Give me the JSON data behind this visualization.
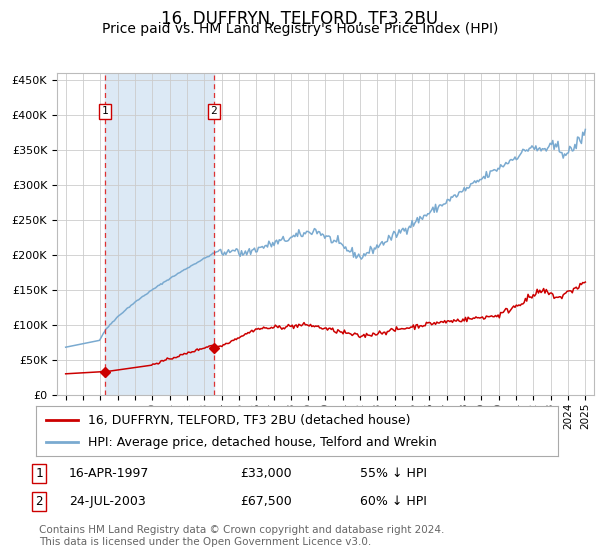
{
  "title": "16, DUFFRYN, TELFORD, TF3 2BU",
  "subtitle": "Price paid vs. HM Land Registry's House Price Index (HPI)",
  "title_fontsize": 12,
  "subtitle_fontsize": 10,
  "background_color": "#ffffff",
  "plot_bg_color": "#ffffff",
  "grid_color": "#cccccc",
  "shaded_region": [
    1997.29,
    2003.56
  ],
  "shaded_color": "#dce9f5",
  "vline1_x": 1997.29,
  "vline2_x": 2003.56,
  "vline_color": "#dd3333",
  "marker1_x": 1997.29,
  "marker1_y": 33000,
  "marker2_x": 2003.56,
  "marker2_y": 67500,
  "marker_color": "#cc0000",
  "annotation_color": "#cc0000",
  "ylim": [
    0,
    460000
  ],
  "xlim": [
    1994.5,
    2025.5
  ],
  "ytick_vals": [
    0,
    50000,
    100000,
    150000,
    200000,
    250000,
    300000,
    350000,
    400000,
    450000
  ],
  "ytick_labels": [
    "£0",
    "£50K",
    "£100K",
    "£150K",
    "£200K",
    "£250K",
    "£300K",
    "£350K",
    "£400K",
    "£450K"
  ],
  "xtick_vals": [
    1995,
    1996,
    1997,
    1998,
    1999,
    2000,
    2001,
    2002,
    2003,
    2004,
    2005,
    2006,
    2007,
    2008,
    2009,
    2010,
    2011,
    2012,
    2013,
    2014,
    2015,
    2016,
    2017,
    2018,
    2019,
    2020,
    2021,
    2022,
    2023,
    2024,
    2025
  ],
  "legend_line1_label": "16, DUFFRYN, TELFORD, TF3 2BU (detached house)",
  "legend_line1_color": "#cc0000",
  "legend_line2_label": "HPI: Average price, detached house, Telford and Wrekin",
  "legend_line2_color": "#7aaad0",
  "table_row1": [
    "1",
    "16-APR-1997",
    "£33,000",
    "55% ↓ HPI"
  ],
  "table_row2": [
    "2",
    "24-JUL-2003",
    "£67,500",
    "60% ↓ HPI"
  ],
  "footer": "Contains HM Land Registry data © Crown copyright and database right 2024.\nThis data is licensed under the Open Government Licence v3.0.",
  "hpi_line_color": "#7aaad0",
  "price_line_color": "#cc0000"
}
